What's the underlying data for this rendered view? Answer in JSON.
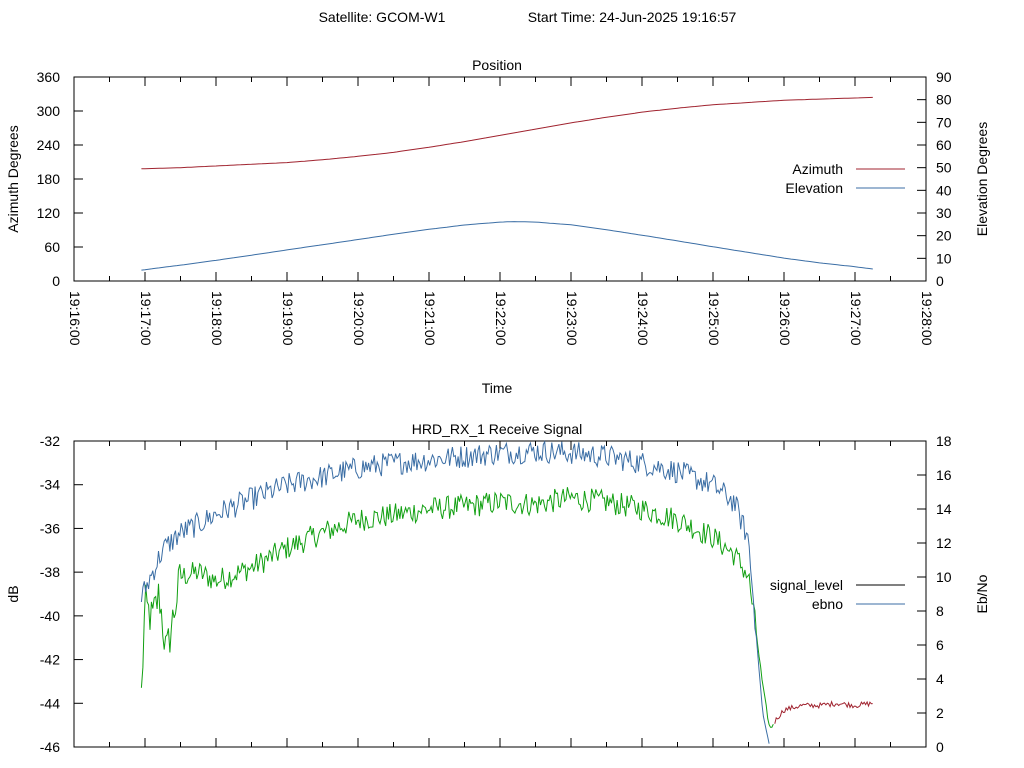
{
  "header": {
    "satellite": "Satellite: GCOM-W1",
    "start_time": "Start Time: 24-Jun-2025 19:16:57"
  },
  "colors": {
    "azimuth": "#a0232f",
    "elevation": "#3b6ea5",
    "signal_level_legend": "#000000",
    "ebno_legend": "#3b6ea5",
    "signal_green": "#12a012",
    "signal_red": "#a0232f",
    "ebno_line": "#3b6ea5"
  },
  "chart_data": [
    {
      "type": "line",
      "title": "Position",
      "xlabel": "Time",
      "ylabel": "Azimuth Degrees",
      "y2label": "Elevation Degrees",
      "xticks": [
        "19:16:00",
        "19:17:00",
        "19:18:00",
        "19:19:00",
        "19:20:00",
        "19:21:00",
        "19:22:00",
        "19:23:00",
        "19:24:00",
        "19:25:00",
        "19:26:00",
        "19:27:00",
        "19:28:00"
      ],
      "xlim_minutes": [
        0,
        12
      ],
      "ylim": [
        0,
        360
      ],
      "y2lim": [
        0,
        90
      ],
      "yticks": [
        "0",
        "60",
        "120",
        "180",
        "240",
        "300",
        "360"
      ],
      "y2ticks": [
        "0",
        "10",
        "20",
        "30",
        "40",
        "50",
        "60",
        "70",
        "80",
        "90"
      ],
      "legend_position": "right",
      "series": [
        {
          "name": "Azimuth",
          "axis": "y",
          "x_minutes": [
            0.95,
            1.5,
            2.0,
            2.5,
            3.0,
            3.5,
            4.0,
            4.5,
            5.0,
            5.5,
            6.0,
            6.5,
            7.0,
            7.5,
            8.0,
            8.5,
            9.0,
            9.5,
            10.0,
            10.5,
            11.0,
            11.25
          ],
          "values": [
            198,
            200,
            203,
            206,
            209,
            214,
            220,
            227,
            236,
            246,
            257,
            268,
            279,
            289,
            298,
            305,
            311,
            315,
            319,
            321,
            323,
            324
          ]
        },
        {
          "name": "Elevation",
          "axis": "y2",
          "x_minutes": [
            0.95,
            1.5,
            2.0,
            2.5,
            3.0,
            3.5,
            4.0,
            4.5,
            5.0,
            5.5,
            6.0,
            6.2,
            6.5,
            7.0,
            7.5,
            8.0,
            8.5,
            9.0,
            9.5,
            10.0,
            10.5,
            11.0,
            11.25
          ],
          "values": [
            4.8,
            7.0,
            9.1,
            11.4,
            13.7,
            16.0,
            18.3,
            20.6,
            22.8,
            24.7,
            26.0,
            26.2,
            26.0,
            24.8,
            22.6,
            20.2,
            17.7,
            15.1,
            12.6,
            10.1,
            8.0,
            6.3,
            5.3
          ]
        }
      ]
    },
    {
      "type": "line",
      "title": "HRD_RX_1 Receive Signal",
      "ylabel": "dB",
      "y2label": "Eb/No",
      "ylim": [
        -46,
        -32
      ],
      "y2lim": [
        0,
        18
      ],
      "yticks": [
        "-46",
        "-44",
        "-42",
        "-40",
        "-38",
        "-36",
        "-34",
        "-32"
      ],
      "y2ticks": [
        "0",
        "2",
        "4",
        "6",
        "8",
        "10",
        "12",
        "14",
        "16",
        "18"
      ],
      "xlim_minutes": [
        0,
        12
      ],
      "legend_position": "right",
      "series": [
        {
          "name": "signal_level",
          "axis": "y",
          "x_minutes": [
            0.95,
            1.0,
            1.1,
            1.2,
            1.3,
            1.5,
            1.75,
            2.0,
            2.5,
            3.0,
            3.5,
            4.0,
            4.5,
            5.0,
            5.5,
            6.0,
            6.5,
            7.0,
            7.5,
            8.0,
            8.5,
            9.0,
            9.3,
            9.5,
            9.6,
            9.7,
            9.8,
            9.9,
            10.0,
            10.25,
            10.5,
            10.75,
            11.0,
            11.25
          ],
          "values": [
            -43.6,
            -39.5,
            -40.2,
            -39.0,
            -41.8,
            -38.2,
            -38.0,
            -38.4,
            -37.8,
            -36.9,
            -36.2,
            -35.6,
            -35.4,
            -35.1,
            -35.0,
            -34.8,
            -34.9,
            -34.6,
            -34.8,
            -35.1,
            -35.6,
            -36.4,
            -37.2,
            -38.2,
            -40.5,
            -43.2,
            -45.2,
            -44.7,
            -44.3,
            -44.1,
            -44.1,
            -44.0,
            -44.1,
            -44.0
          ]
        },
        {
          "name": "ebno",
          "axis": "y2",
          "x_minutes": [
            0.95,
            1.1,
            1.25,
            1.5,
            1.75,
            2.0,
            2.5,
            3.0,
            3.5,
            4.0,
            4.5,
            5.0,
            5.5,
            6.0,
            6.5,
            7.0,
            7.5,
            8.0,
            8.5,
            9.0,
            9.3,
            9.5,
            9.6,
            9.7,
            9.8
          ],
          "values": [
            8.8,
            10.2,
            11.6,
            12.6,
            13.1,
            13.7,
            14.6,
            15.4,
            15.9,
            16.4,
            16.7,
            16.9,
            17.1,
            17.3,
            17.4,
            17.3,
            17.1,
            16.7,
            16.2,
            15.4,
            14.4,
            12.2,
            7.0,
            2.0,
            0.0
          ]
        }
      ]
    }
  ]
}
